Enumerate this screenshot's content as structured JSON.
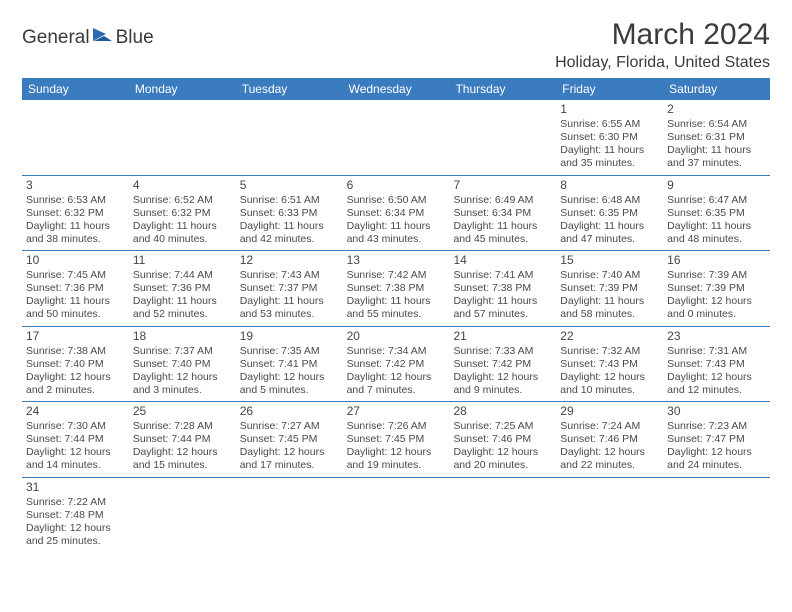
{
  "brand": {
    "text1": "General",
    "text2": "Blue"
  },
  "title": "March 2024",
  "location": "Holiday, Florida, United States",
  "header_bg": "#3b7bbf",
  "text_color": "#3b3b3b",
  "days": [
    "Sunday",
    "Monday",
    "Tuesday",
    "Wednesday",
    "Thursday",
    "Friday",
    "Saturday"
  ],
  "weeks": [
    [
      null,
      null,
      null,
      null,
      null,
      {
        "n": "1",
        "sunrise": "6:55 AM",
        "sunset": "6:30 PM",
        "day": "11 hours and 35 minutes."
      },
      {
        "n": "2",
        "sunrise": "6:54 AM",
        "sunset": "6:31 PM",
        "day": "11 hours and 37 minutes."
      }
    ],
    [
      {
        "n": "3",
        "sunrise": "6:53 AM",
        "sunset": "6:32 PM",
        "day": "11 hours and 38 minutes."
      },
      {
        "n": "4",
        "sunrise": "6:52 AM",
        "sunset": "6:32 PM",
        "day": "11 hours and 40 minutes."
      },
      {
        "n": "5",
        "sunrise": "6:51 AM",
        "sunset": "6:33 PM",
        "day": "11 hours and 42 minutes."
      },
      {
        "n": "6",
        "sunrise": "6:50 AM",
        "sunset": "6:34 PM",
        "day": "11 hours and 43 minutes."
      },
      {
        "n": "7",
        "sunrise": "6:49 AM",
        "sunset": "6:34 PM",
        "day": "11 hours and 45 minutes."
      },
      {
        "n": "8",
        "sunrise": "6:48 AM",
        "sunset": "6:35 PM",
        "day": "11 hours and 47 minutes."
      },
      {
        "n": "9",
        "sunrise": "6:47 AM",
        "sunset": "6:35 PM",
        "day": "11 hours and 48 minutes."
      }
    ],
    [
      {
        "n": "10",
        "sunrise": "7:45 AM",
        "sunset": "7:36 PM",
        "day": "11 hours and 50 minutes."
      },
      {
        "n": "11",
        "sunrise": "7:44 AM",
        "sunset": "7:36 PM",
        "day": "11 hours and 52 minutes."
      },
      {
        "n": "12",
        "sunrise": "7:43 AM",
        "sunset": "7:37 PM",
        "day": "11 hours and 53 minutes."
      },
      {
        "n": "13",
        "sunrise": "7:42 AM",
        "sunset": "7:38 PM",
        "day": "11 hours and 55 minutes."
      },
      {
        "n": "14",
        "sunrise": "7:41 AM",
        "sunset": "7:38 PM",
        "day": "11 hours and 57 minutes."
      },
      {
        "n": "15",
        "sunrise": "7:40 AM",
        "sunset": "7:39 PM",
        "day": "11 hours and 58 minutes."
      },
      {
        "n": "16",
        "sunrise": "7:39 AM",
        "sunset": "7:39 PM",
        "day": "12 hours and 0 minutes."
      }
    ],
    [
      {
        "n": "17",
        "sunrise": "7:38 AM",
        "sunset": "7:40 PM",
        "day": "12 hours and 2 minutes."
      },
      {
        "n": "18",
        "sunrise": "7:37 AM",
        "sunset": "7:40 PM",
        "day": "12 hours and 3 minutes."
      },
      {
        "n": "19",
        "sunrise": "7:35 AM",
        "sunset": "7:41 PM",
        "day": "12 hours and 5 minutes."
      },
      {
        "n": "20",
        "sunrise": "7:34 AM",
        "sunset": "7:42 PM",
        "day": "12 hours and 7 minutes."
      },
      {
        "n": "21",
        "sunrise": "7:33 AM",
        "sunset": "7:42 PM",
        "day": "12 hours and 9 minutes."
      },
      {
        "n": "22",
        "sunrise": "7:32 AM",
        "sunset": "7:43 PM",
        "day": "12 hours and 10 minutes."
      },
      {
        "n": "23",
        "sunrise": "7:31 AM",
        "sunset": "7:43 PM",
        "day": "12 hours and 12 minutes."
      }
    ],
    [
      {
        "n": "24",
        "sunrise": "7:30 AM",
        "sunset": "7:44 PM",
        "day": "12 hours and 14 minutes."
      },
      {
        "n": "25",
        "sunrise": "7:28 AM",
        "sunset": "7:44 PM",
        "day": "12 hours and 15 minutes."
      },
      {
        "n": "26",
        "sunrise": "7:27 AM",
        "sunset": "7:45 PM",
        "day": "12 hours and 17 minutes."
      },
      {
        "n": "27",
        "sunrise": "7:26 AM",
        "sunset": "7:45 PM",
        "day": "12 hours and 19 minutes."
      },
      {
        "n": "28",
        "sunrise": "7:25 AM",
        "sunset": "7:46 PM",
        "day": "12 hours and 20 minutes."
      },
      {
        "n": "29",
        "sunrise": "7:24 AM",
        "sunset": "7:46 PM",
        "day": "12 hours and 22 minutes."
      },
      {
        "n": "30",
        "sunrise": "7:23 AM",
        "sunset": "7:47 PM",
        "day": "12 hours and 24 minutes."
      }
    ],
    [
      {
        "n": "31",
        "sunrise": "7:22 AM",
        "sunset": "7:48 PM",
        "day": "12 hours and 25 minutes."
      },
      null,
      null,
      null,
      null,
      null,
      null
    ]
  ],
  "labels": {
    "sunrise_prefix": "Sunrise: ",
    "sunset_prefix": "Sunset: ",
    "daylight_prefix": "Daylight: "
  }
}
